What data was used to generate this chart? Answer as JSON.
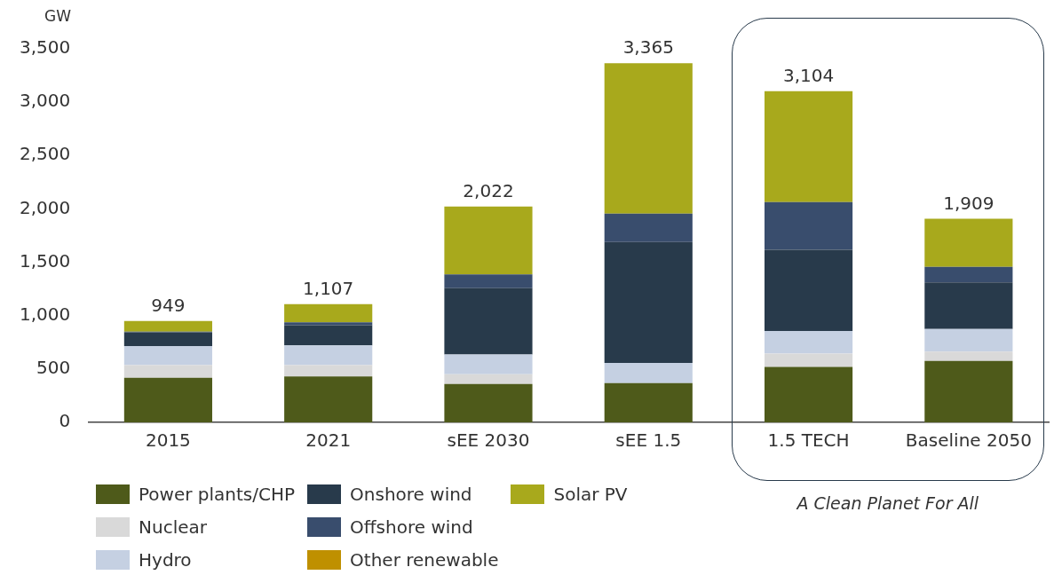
{
  "chart_data": {
    "type": "bar",
    "stacked": true,
    "ylabel": "GW",
    "categories": [
      "2015",
      "2021",
      "sEE 2030",
      "sEE 1.5",
      "1.5 TECH",
      "Baseline 2050"
    ],
    "series": [
      {
        "name": "Power plants/CHP",
        "color": "#4e5a1a",
        "values": [
          417,
          431,
          360,
          368,
          519,
          575
        ]
      },
      {
        "name": "Nuclear",
        "color": "#d9d9d9",
        "values": [
          120,
          106,
          91,
          0,
          125,
          88
        ]
      },
      {
        "name": "Hydro",
        "color": "#c5d0e2",
        "values": [
          179,
          185,
          184,
          190,
          213,
          213
        ]
      },
      {
        "name": "Onshore wind",
        "color": "#283a4b",
        "values": [
          127,
          188,
          622,
          1132,
          759,
          436
        ]
      },
      {
        "name": "Offshore wind",
        "color": "#394d6d",
        "values": [
          8,
          27,
          130,
          265,
          447,
          144
        ]
      },
      {
        "name": "Other renewable",
        "color": "#bf9000",
        "values": [
          0,
          0,
          0,
          0,
          0,
          0
        ]
      },
      {
        "name": "Solar PV",
        "color": "#a8a91c",
        "values": [
          98,
          170,
          635,
          1410,
          1041,
          453
        ]
      }
    ],
    "totals": [
      "949",
      "1,107",
      "2,022",
      "3,365",
      "3,104",
      "1,909"
    ],
    "ylim": [
      0,
      3500
    ],
    "yticks": [
      {
        "value": 0,
        "label": "0"
      },
      {
        "value": 500,
        "label": "500"
      },
      {
        "value": 1000,
        "label": "1,000"
      },
      {
        "value": 1500,
        "label": "1,500"
      },
      {
        "value": 2000,
        "label": "2,000"
      },
      {
        "value": 2500,
        "label": "2,500"
      },
      {
        "value": 3000,
        "label": "3,000"
      },
      {
        "value": 3500,
        "label": "3,500"
      }
    ],
    "grid": false,
    "legend": "bottom",
    "annotations": [
      "A Clean Planet For All"
    ]
  }
}
